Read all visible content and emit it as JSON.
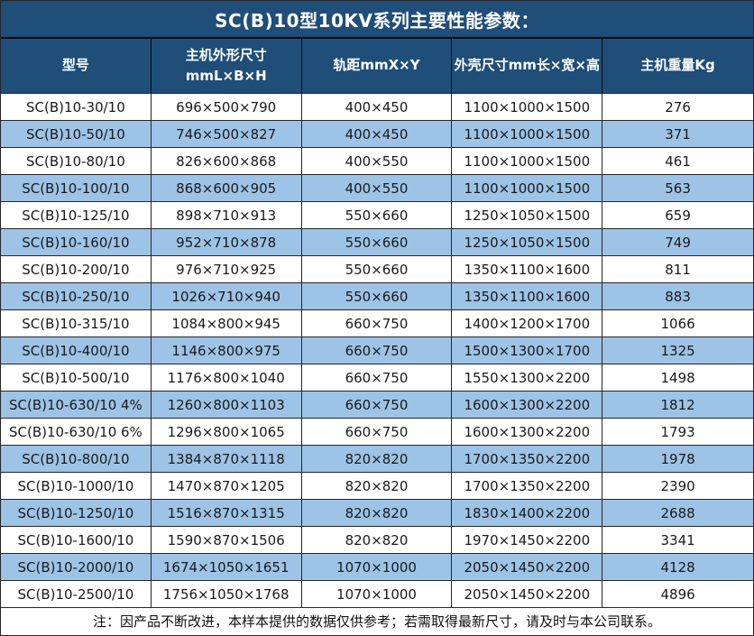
{
  "title": "SC(B)10型10KV系列主要性能参数：",
  "table": {
    "columns": [
      {
        "label": "型号"
      },
      {
        "label": "主机外形尺寸",
        "label2": "mmL×B×H"
      },
      {
        "label": "轨距mmX×Y"
      },
      {
        "label": "外壳尺寸mm长×宽×高"
      },
      {
        "label": "主机重量Kg"
      }
    ],
    "rows": [
      [
        "SC(B)10-30/10",
        "696×500×790",
        "400×450",
        "1100×1000×1500",
        "276"
      ],
      [
        "SC(B)10-50/10",
        "746×500×827",
        "400×450",
        "1100×1000×1500",
        "371"
      ],
      [
        "SC(B)10-80/10",
        "826×600×868",
        "400×550",
        "1100×1000×1500",
        "461"
      ],
      [
        "SC(B)10-100/10",
        "868×600×905",
        "400×550",
        "1100×1000×1500",
        "563"
      ],
      [
        "SC(B)10-125/10",
        "898×710×913",
        "550×660",
        "1250×1050×1500",
        "659"
      ],
      [
        "SC(B)10-160/10",
        "952×710×878",
        "550×660",
        "1250×1050×1500",
        "749"
      ],
      [
        "SC(B)10-200/10",
        "976×710×925",
        "550×660",
        "1350×1100×1600",
        "811"
      ],
      [
        "SC(B)10-250/10",
        "1026×710×940",
        "550×660",
        "1350×1100×1600",
        "883"
      ],
      [
        "SC(B)10-315/10",
        "1084×800×945",
        "660×750",
        "1400×1200×1700",
        "1066"
      ],
      [
        "SC(B)10-400/10",
        "1146×800×975",
        "660×750",
        "1500×1300×1700",
        "1325"
      ],
      [
        "SC(B)10-500/10",
        "1176×800×1040",
        "660×750",
        "1550×1300×2200",
        "1498"
      ],
      [
        "SC(B)10-630/10 4%",
        "1260×800×1103",
        "660×750",
        "1600×1300×2200",
        "1812"
      ],
      [
        "SC(B)10-630/10 6%",
        "1296×800×1065",
        "660×750",
        "1600×1300×2200",
        "1793"
      ],
      [
        "SC(B)10-800/10",
        "1384×870×1118",
        "820×820",
        "1700×1350×2200",
        "1978"
      ],
      [
        "SC(B)10-1000/10",
        "1470×870×1205",
        "820×820",
        "1700×1350×2200",
        "2390"
      ],
      [
        "SC(B)10-1250/10",
        "1516×870×1315",
        "820×820",
        "1830×1400×2200",
        "2688"
      ],
      [
        "SC(B)10-1600/10",
        "1590×870×1506",
        "820×820",
        "1970×1450×2200",
        "3341"
      ],
      [
        "SC(B)10-2000/10",
        "1674×1050×1651",
        "1070×1000",
        "2050×1450×2200",
        "4128"
      ],
      [
        "SC(B)10-2500/10",
        "1756×1050×1768",
        "1070×1000",
        "2050×1450×2200",
        "4896"
      ]
    ]
  },
  "note": "注：因产品不断改进，本样本提供的数据仅供参考；若需取得最新尺寸，请及时与本公司联系。",
  "colors": {
    "header_bg": "#1F4E79",
    "stripe_bg": "#9DC3E6",
    "grid_line": "#262626",
    "header_text": "#ffffff",
    "cell_text": "#1a1a1a"
  }
}
